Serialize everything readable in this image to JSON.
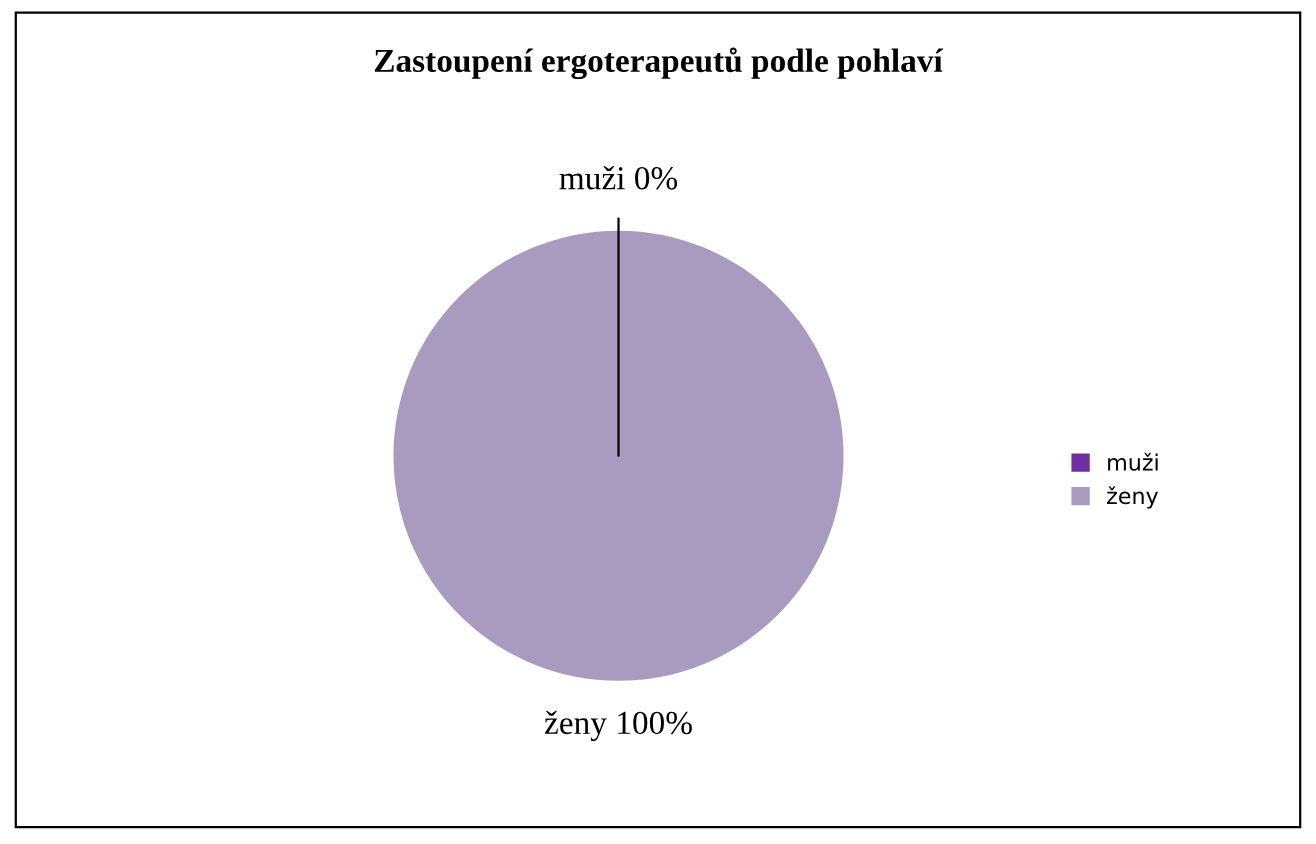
{
  "chart_data": {
    "type": "pie",
    "title": "Zastoupení ergoterapeutů podle pohlaví",
    "categories": [
      "muži",
      "ženy"
    ],
    "values": [
      0,
      100
    ],
    "colors": [
      "#7030a0",
      "#a99bc0"
    ],
    "value_labels": [
      "muži 0%",
      "ženy 100%"
    ],
    "legend": "right"
  }
}
